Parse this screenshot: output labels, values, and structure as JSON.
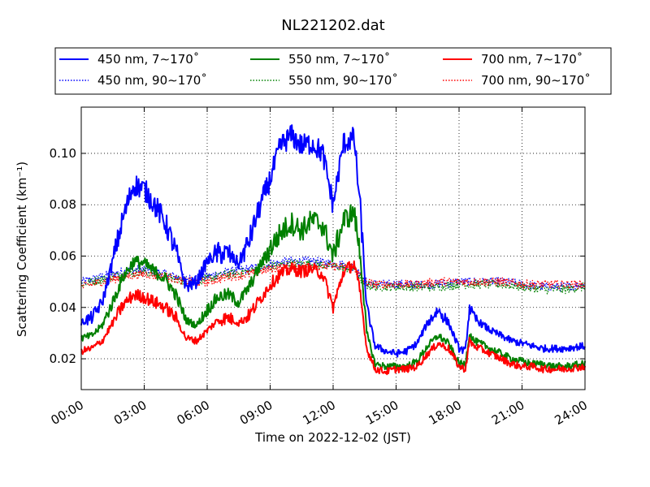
{
  "chart_data": {
    "type": "line",
    "title": "NL221202.dat",
    "xlabel": "Time on 2022-12-02 (JST)",
    "ylabel": "Scattering Coefficient (km⁻¹)",
    "x_unit": "hours",
    "xlim": [
      0,
      24
    ],
    "ylim": [
      0.008,
      0.118
    ],
    "x_ticks": [
      0,
      3,
      6,
      9,
      12,
      15,
      18,
      21,
      24
    ],
    "x_tick_labels": [
      "00:00",
      "03:00",
      "06:00",
      "09:00",
      "12:00",
      "15:00",
      "18:00",
      "21:00",
      "24:00"
    ],
    "y_ticks": [
      0.02,
      0.04,
      0.06,
      0.08,
      0.1
    ],
    "y_tick_labels": [
      "0.02",
      "0.04",
      "0.06",
      "0.08",
      "0.10"
    ],
    "grid": true,
    "legend_position": "top",
    "legend_columns": 3,
    "series": [
      {
        "name": "450 nm, 7∼170˚",
        "color": "#0000ff",
        "style": "solid",
        "points": [
          [
            0,
            0.034
          ],
          [
            0.5,
            0.036
          ],
          [
            1,
            0.042
          ],
          [
            1.5,
            0.058
          ],
          [
            2,
            0.075
          ],
          [
            2.5,
            0.088
          ],
          [
            3,
            0.086
          ],
          [
            3.5,
            0.08
          ],
          [
            4,
            0.073
          ],
          [
            4.5,
            0.062
          ],
          [
            5,
            0.048
          ],
          [
            5.5,
            0.05
          ],
          [
            6,
            0.058
          ],
          [
            6.5,
            0.061
          ],
          [
            7,
            0.061
          ],
          [
            7.5,
            0.057
          ],
          [
            8,
            0.066
          ],
          [
            8.5,
            0.079
          ],
          [
            9,
            0.09
          ],
          [
            9.5,
            0.103
          ],
          [
            10,
            0.107
          ],
          [
            10.5,
            0.103
          ],
          [
            11,
            0.104
          ],
          [
            11.5,
            0.1
          ],
          [
            12,
            0.08
          ],
          [
            12.5,
            0.104
          ],
          [
            13,
            0.106
          ],
          [
            13.3,
            0.078
          ],
          [
            13.6,
            0.04
          ],
          [
            14,
            0.025
          ],
          [
            14.5,
            0.023
          ],
          [
            15,
            0.022
          ],
          [
            15.5,
            0.023
          ],
          [
            16,
            0.026
          ],
          [
            16.5,
            0.034
          ],
          [
            17,
            0.039
          ],
          [
            17.5,
            0.034
          ],
          [
            18,
            0.024
          ],
          [
            18.3,
            0.023
          ],
          [
            18.5,
            0.04
          ],
          [
            18.7,
            0.036
          ],
          [
            19,
            0.034
          ],
          [
            19.5,
            0.031
          ],
          [
            20,
            0.029
          ],
          [
            20.5,
            0.027
          ],
          [
            21,
            0.026
          ],
          [
            21.5,
            0.025
          ],
          [
            22,
            0.024
          ],
          [
            22.5,
            0.024
          ],
          [
            23,
            0.024
          ],
          [
            24,
            0.025
          ]
        ]
      },
      {
        "name": "450 nm, 90∼170˚",
        "color": "#0000ff",
        "style": "dotted",
        "points": [
          [
            0,
            0.05
          ],
          [
            1,
            0.052
          ],
          [
            2,
            0.054
          ],
          [
            3,
            0.055
          ],
          [
            4,
            0.053
          ],
          [
            5,
            0.051
          ],
          [
            6,
            0.052
          ],
          [
            7,
            0.054
          ],
          [
            8,
            0.055
          ],
          [
            9,
            0.057
          ],
          [
            10,
            0.058
          ],
          [
            11,
            0.058
          ],
          [
            12,
            0.057
          ],
          [
            13,
            0.056
          ],
          [
            13.5,
            0.05
          ],
          [
            14,
            0.049
          ],
          [
            15,
            0.049
          ],
          [
            16,
            0.049
          ],
          [
            17,
            0.049
          ],
          [
            18,
            0.05
          ],
          [
            19,
            0.05
          ],
          [
            20,
            0.05
          ],
          [
            21,
            0.049
          ],
          [
            22,
            0.048
          ],
          [
            23,
            0.048
          ],
          [
            24,
            0.049
          ]
        ]
      },
      {
        "name": "550 nm, 7∼170˚",
        "color": "#008000",
        "style": "solid",
        "points": [
          [
            0,
            0.028
          ],
          [
            0.5,
            0.029
          ],
          [
            1,
            0.033
          ],
          [
            1.5,
            0.042
          ],
          [
            2,
            0.052
          ],
          [
            2.5,
            0.058
          ],
          [
            3,
            0.057
          ],
          [
            3.5,
            0.054
          ],
          [
            4,
            0.051
          ],
          [
            4.5,
            0.045
          ],
          [
            5,
            0.035
          ],
          [
            5.5,
            0.033
          ],
          [
            6,
            0.039
          ],
          [
            6.5,
            0.044
          ],
          [
            7,
            0.045
          ],
          [
            7.5,
            0.042
          ],
          [
            8,
            0.048
          ],
          [
            8.5,
            0.056
          ],
          [
            9,
            0.063
          ],
          [
            9.5,
            0.069
          ],
          [
            10,
            0.073
          ],
          [
            10.5,
            0.07
          ],
          [
            11,
            0.074
          ],
          [
            11.5,
            0.072
          ],
          [
            12,
            0.06
          ],
          [
            12.5,
            0.074
          ],
          [
            13,
            0.077
          ],
          [
            13.3,
            0.06
          ],
          [
            13.6,
            0.03
          ],
          [
            14,
            0.018
          ],
          [
            14.5,
            0.017
          ],
          [
            15,
            0.017
          ],
          [
            15.5,
            0.017
          ],
          [
            16,
            0.019
          ],
          [
            16.5,
            0.025
          ],
          [
            17,
            0.029
          ],
          [
            17.5,
            0.026
          ],
          [
            18,
            0.018
          ],
          [
            18.3,
            0.018
          ],
          [
            18.5,
            0.03
          ],
          [
            18.7,
            0.027
          ],
          [
            19,
            0.026
          ],
          [
            19.5,
            0.024
          ],
          [
            20,
            0.022
          ],
          [
            20.5,
            0.02
          ],
          [
            21,
            0.019
          ],
          [
            21.5,
            0.018
          ],
          [
            22,
            0.018
          ],
          [
            22.5,
            0.017
          ],
          [
            23,
            0.017
          ],
          [
            24,
            0.018
          ]
        ]
      },
      {
        "name": "550 nm, 90∼170˚",
        "color": "#008000",
        "style": "dotted",
        "points": [
          [
            0,
            0.049
          ],
          [
            1,
            0.051
          ],
          [
            2,
            0.053
          ],
          [
            3,
            0.054
          ],
          [
            4,
            0.052
          ],
          [
            5,
            0.05
          ],
          [
            6,
            0.051
          ],
          [
            7,
            0.053
          ],
          [
            8,
            0.054
          ],
          [
            9,
            0.056
          ],
          [
            10,
            0.057
          ],
          [
            11,
            0.057
          ],
          [
            12,
            0.056
          ],
          [
            13,
            0.055
          ],
          [
            13.5,
            0.049
          ],
          [
            14,
            0.048
          ],
          [
            15,
            0.048
          ],
          [
            16,
            0.048
          ],
          [
            17,
            0.048
          ],
          [
            18,
            0.049
          ],
          [
            19,
            0.049
          ],
          [
            20,
            0.049
          ],
          [
            21,
            0.048
          ],
          [
            22,
            0.047
          ],
          [
            23,
            0.047
          ],
          [
            24,
            0.048
          ]
        ]
      },
      {
        "name": "700 nm, 7∼170˚",
        "color": "#ff0000",
        "style": "solid",
        "points": [
          [
            0,
            0.023
          ],
          [
            0.5,
            0.024
          ],
          [
            1,
            0.027
          ],
          [
            1.5,
            0.034
          ],
          [
            2,
            0.041
          ],
          [
            2.5,
            0.045
          ],
          [
            3,
            0.044
          ],
          [
            3.5,
            0.042
          ],
          [
            4,
            0.04
          ],
          [
            4.5,
            0.036
          ],
          [
            5,
            0.028
          ],
          [
            5.5,
            0.027
          ],
          [
            6,
            0.031
          ],
          [
            6.5,
            0.035
          ],
          [
            7,
            0.036
          ],
          [
            7.5,
            0.034
          ],
          [
            8,
            0.037
          ],
          [
            8.5,
            0.043
          ],
          [
            9,
            0.049
          ],
          [
            9.5,
            0.053
          ],
          [
            10,
            0.055
          ],
          [
            10.5,
            0.054
          ],
          [
            11,
            0.055
          ],
          [
            11.5,
            0.053
          ],
          [
            12,
            0.04
          ],
          [
            12.5,
            0.054
          ],
          [
            13,
            0.057
          ],
          [
            13.3,
            0.045
          ],
          [
            13.6,
            0.024
          ],
          [
            14,
            0.016
          ],
          [
            14.5,
            0.015
          ],
          [
            15,
            0.016
          ],
          [
            15.5,
            0.016
          ],
          [
            16,
            0.017
          ],
          [
            16.5,
            0.022
          ],
          [
            17,
            0.026
          ],
          [
            17.5,
            0.024
          ],
          [
            18,
            0.017
          ],
          [
            18.3,
            0.016
          ],
          [
            18.5,
            0.027
          ],
          [
            18.7,
            0.025
          ],
          [
            19,
            0.024
          ],
          [
            19.5,
            0.022
          ],
          [
            20,
            0.02
          ],
          [
            20.5,
            0.018
          ],
          [
            21,
            0.017
          ],
          [
            21.5,
            0.017
          ],
          [
            22,
            0.016
          ],
          [
            22.5,
            0.016
          ],
          [
            23,
            0.016
          ],
          [
            24,
            0.017
          ]
        ]
      },
      {
        "name": "700 nm, 90∼170˚",
        "color": "#ff0000",
        "style": "dotted",
        "points": [
          [
            0,
            0.048
          ],
          [
            1,
            0.05
          ],
          [
            2,
            0.052
          ],
          [
            3,
            0.053
          ],
          [
            4,
            0.052
          ],
          [
            5,
            0.05
          ],
          [
            6,
            0.05
          ],
          [
            7,
            0.052
          ],
          [
            8,
            0.053
          ],
          [
            9,
            0.055
          ],
          [
            10,
            0.056
          ],
          [
            11,
            0.056
          ],
          [
            12,
            0.056
          ],
          [
            13,
            0.055
          ],
          [
            13.5,
            0.05
          ],
          [
            14,
            0.049
          ],
          [
            15,
            0.049
          ],
          [
            16,
            0.049
          ],
          [
            17,
            0.05
          ],
          [
            18,
            0.05
          ],
          [
            19,
            0.05
          ],
          [
            20,
            0.05
          ],
          [
            21,
            0.049
          ],
          [
            22,
            0.049
          ],
          [
            23,
            0.049
          ],
          [
            24,
            0.049
          ]
        ]
      }
    ]
  }
}
